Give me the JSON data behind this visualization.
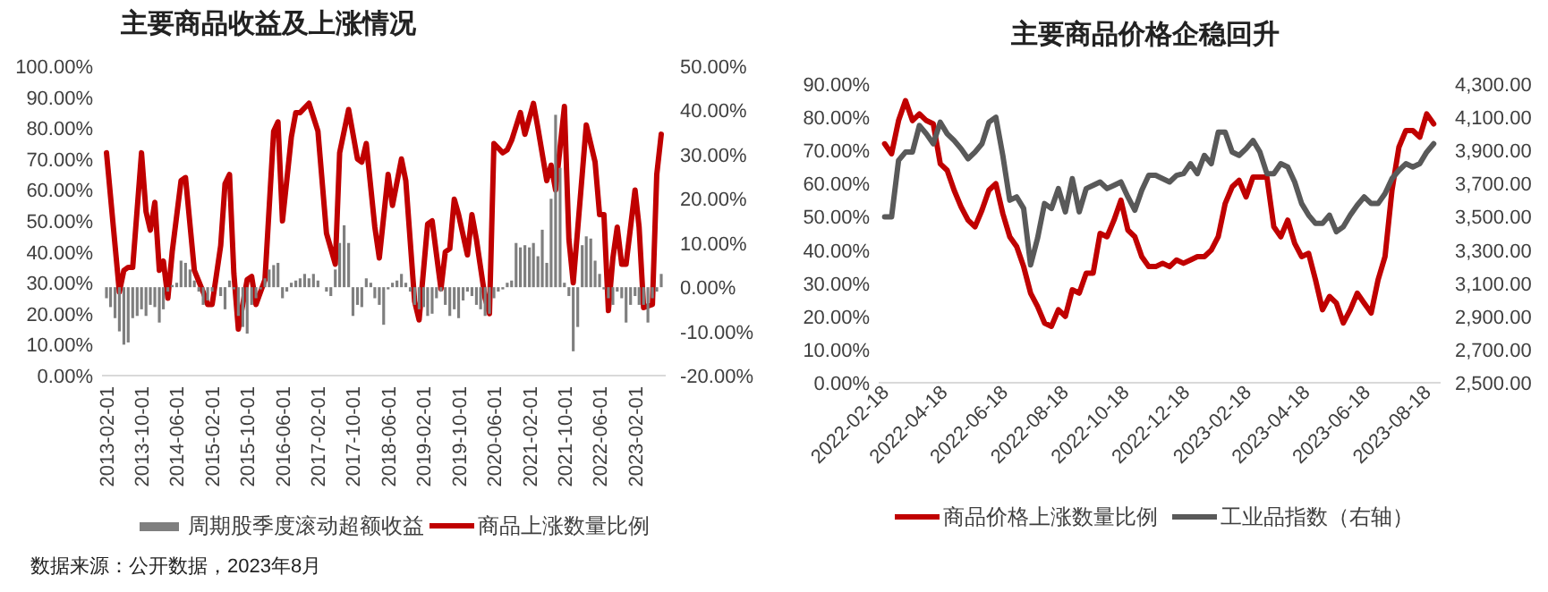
{
  "chart_data": [
    {
      "type": "bar",
      "title": "主要商品收益及上涨情况",
      "legend": "bottom",
      "annotations": [
        "数据来源：公开数据，2023年8月"
      ],
      "xlim": [
        "2013-01",
        "2023-09"
      ],
      "xticks": [
        "2013-02-01",
        "2013-10-01",
        "2014-06-01",
        "2015-02-01",
        "2015-10-01",
        "2016-06-01",
        "2017-02-01",
        "2017-10-01",
        "2018-06-01",
        "2019-02-01",
        "2019-10-01",
        "2020-06-01",
        "2021-02-01",
        "2021-10-01",
        "2022-06-01",
        "2023-02-01"
      ],
      "ylim": [
        0,
        100
      ],
      "yticks": [
        {
          "value": 0,
          "label": "0.00%"
        },
        {
          "value": 10,
          "label": "10.00%"
        },
        {
          "value": 20,
          "label": "20.00%"
        },
        {
          "value": 30,
          "label": "30.00%"
        },
        {
          "value": 40,
          "label": "40.00%"
        },
        {
          "value": 50,
          "label": "50.00%"
        },
        {
          "value": 60,
          "label": "60.00%"
        },
        {
          "value": 70,
          "label": "70.00%"
        },
        {
          "value": 80,
          "label": "80.00%"
        },
        {
          "value": 90,
          "label": "90.00%"
        },
        {
          "value": 100,
          "label": "100.00%"
        }
      ],
      "y2lim": [
        -20,
        50
      ],
      "y2ticks": [
        {
          "value": -20,
          "label": "-20.00%"
        },
        {
          "value": -10,
          "label": "-10.00%"
        },
        {
          "value": 0,
          "label": "0.00%"
        },
        {
          "value": 10,
          "label": "10.00%"
        },
        {
          "value": 20,
          "label": "20.00%"
        },
        {
          "value": 30,
          "label": "30.00%"
        },
        {
          "value": 40,
          "label": "40.00%"
        },
        {
          "value": 50,
          "label": "50.00%"
        }
      ],
      "x": [
        "2013-02",
        "2013-03",
        "2013-04",
        "2013-05",
        "2013-06",
        "2013-07",
        "2013-08",
        "2013-09",
        "2013-10",
        "2013-11",
        "2013-12",
        "2014-01",
        "2014-02",
        "2014-03",
        "2014-04",
        "2014-05",
        "2014-06",
        "2014-07",
        "2014-08",
        "2014-09",
        "2014-10",
        "2014-11",
        "2014-12",
        "2015-01",
        "2015-02",
        "2015-03",
        "2015-04",
        "2015-05",
        "2015-06",
        "2015-07",
        "2015-08",
        "2015-09",
        "2015-10",
        "2015-11",
        "2015-12",
        "2016-01",
        "2016-02",
        "2016-03",
        "2016-04",
        "2016-05",
        "2016-06",
        "2016-07",
        "2016-08",
        "2016-09",
        "2016-10",
        "2016-11",
        "2016-12",
        "2017-01",
        "2017-02",
        "2017-03",
        "2017-04",
        "2017-05",
        "2017-06",
        "2017-07",
        "2017-08",
        "2017-09",
        "2017-10",
        "2017-11",
        "2017-12",
        "2018-01",
        "2018-02",
        "2018-03",
        "2018-04",
        "2018-05",
        "2018-06",
        "2018-07",
        "2018-08",
        "2018-09",
        "2018-10",
        "2018-11",
        "2018-12",
        "2019-01",
        "2019-02",
        "2019-03",
        "2019-04",
        "2019-05",
        "2019-06",
        "2019-07",
        "2019-08",
        "2019-09",
        "2019-10",
        "2019-11",
        "2019-12",
        "2020-01",
        "2020-02",
        "2020-03",
        "2020-04",
        "2020-05",
        "2020-06",
        "2020-07",
        "2020-08",
        "2020-09",
        "2020-10",
        "2020-11",
        "2020-12",
        "2021-01",
        "2021-02",
        "2021-03",
        "2021-04",
        "2021-05",
        "2021-06",
        "2021-07",
        "2021-08",
        "2021-09",
        "2021-10",
        "2021-11",
        "2021-12",
        "2022-01",
        "2022-02",
        "2022-03",
        "2022-04",
        "2022-05",
        "2022-06",
        "2022-07",
        "2022-08",
        "2022-09",
        "2022-10",
        "2022-11",
        "2022-12",
        "2023-01",
        "2023-02",
        "2023-03",
        "2023-04",
        "2023-05",
        "2023-06",
        "2023-07",
        "2023-08"
      ],
      "series": [
        {
          "name": "周期股季度滚动超额收益",
          "axis": "y2",
          "color": "#7f7f7f",
          "values": [
            -2.5,
            -4.5,
            -7,
            -10,
            -13,
            -12.5,
            -7,
            -6.5,
            -5,
            -6.5,
            -4,
            -4.5,
            -8,
            -5,
            -1,
            0.5,
            1,
            6,
            5.5,
            4,
            1.5,
            -1,
            -4,
            -3,
            -1,
            0,
            -2,
            -5,
            1.5,
            -0.5,
            -6.5,
            -9,
            -10.5,
            -4,
            -2.5,
            -0.5,
            2,
            4,
            5,
            5.5,
            -2.5,
            -1,
            1,
            1.5,
            2,
            3,
            2,
            3,
            1.5,
            0,
            -1,
            -2,
            4,
            10,
            14,
            10,
            -6.5,
            -4,
            -4.5,
            2,
            1,
            -2.5,
            -4,
            -8.5,
            -0.5,
            1,
            1.5,
            3,
            1,
            -1,
            -4,
            -5,
            -4.5,
            -6.5,
            -6,
            -2.5,
            -1,
            -4,
            -6.5,
            -5,
            -7,
            -3,
            -1,
            -2,
            -4,
            -5,
            -6.5,
            -6,
            -2.5,
            -1,
            -0.5,
            1,
            1.5,
            10,
            9,
            9.5,
            9,
            10,
            7,
            13,
            5.5,
            20,
            39,
            27,
            1,
            -2,
            -14.5,
            -9,
            9.5,
            11.5,
            11,
            6,
            3,
            -0.5,
            -2.5,
            -4,
            -1,
            -2.5,
            -8,
            -4,
            -2,
            -4,
            -4,
            -8,
            -2.5,
            -1,
            3
          ]
        },
        {
          "name": "商品上涨数量比例",
          "type": "line",
          "axis": "y",
          "color": "#c00000",
          "x": [
            "2013-02",
            "2013-05",
            "2013-06",
            "2013-07",
            "2013-08",
            "2013-10",
            "2013-11",
            "2013-12",
            "2014-01",
            "2014-02",
            "2014-03",
            "2014-04",
            "2014-05",
            "2014-07",
            "2014-08",
            "2014-10",
            "2014-12",
            "2015-01",
            "2015-02",
            "2015-04",
            "2015-05",
            "2015-06",
            "2015-07",
            "2015-08",
            "2015-10",
            "2015-11",
            "2015-12",
            "2016-02",
            "2016-04",
            "2016-05",
            "2016-06",
            "2016-08",
            "2016-09",
            "2016-10",
            "2016-12",
            "2017-02",
            "2017-04",
            "2017-06",
            "2017-07",
            "2017-09",
            "2017-11",
            "2017-12",
            "2018-01",
            "2018-03",
            "2018-04",
            "2018-06",
            "2018-07",
            "2018-09",
            "2018-10",
            "2018-12",
            "2019-01",
            "2019-03",
            "2019-04",
            "2019-06",
            "2019-07",
            "2019-08",
            "2019-09",
            "2019-10",
            "2019-12",
            "2020-01",
            "2020-02",
            "2020-04",
            "2020-05",
            "2020-06",
            "2020-08",
            "2020-09",
            "2020-10",
            "2020-12",
            "2021-01",
            "2021-03",
            "2021-04",
            "2021-06",
            "2021-07",
            "2021-08",
            "2021-10",
            "2021-11",
            "2021-12",
            "2022-02",
            "2022-03",
            "2022-05",
            "2022-06",
            "2022-07",
            "2022-08",
            "2022-09",
            "2022-10",
            "2022-11",
            "2022-12",
            "2023-02",
            "2023-03",
            "2023-04",
            "2023-06",
            "2023-07",
            "2023-08"
          ],
          "values": [
            72,
            27,
            34,
            35,
            35,
            72,
            53,
            47,
            56,
            34,
            37,
            25,
            40,
            63,
            64,
            34,
            27,
            23,
            23,
            42,
            62,
            65,
            33,
            15,
            31,
            32,
            23,
            31,
            79,
            82,
            50,
            77,
            85,
            85,
            88,
            79,
            46,
            36,
            72,
            86,
            70,
            69,
            75,
            48,
            38,
            65,
            55,
            70,
            63,
            24,
            18,
            49,
            50,
            28,
            40,
            41,
            57,
            52,
            39,
            52,
            44,
            25,
            20,
            75,
            72,
            73,
            76,
            85,
            78,
            88,
            80,
            63,
            68,
            60,
            87,
            44,
            30,
            65,
            81,
            69,
            52,
            52,
            21,
            38,
            48,
            36,
            36,
            60,
            48,
            22,
            23,
            65,
            78
          ]
        }
      ]
    },
    {
      "type": "line",
      "title": "主要商品价格企稳回升",
      "legend": "bottom",
      "xlim": [
        "2022-02-12",
        "2023-09-01"
      ],
      "xticks": [
        "2022-02-18",
        "2022-04-18",
        "2022-06-18",
        "2022-08-18",
        "2022-10-18",
        "2022-12-18",
        "2023-02-18",
        "2023-04-18",
        "2023-06-18",
        "2023-08-18"
      ],
      "ylim": [
        0,
        90
      ],
      "yticks": [
        {
          "value": 0,
          "label": "0.00%"
        },
        {
          "value": 10,
          "label": "10.00%"
        },
        {
          "value": 20,
          "label": "20.00%"
        },
        {
          "value": 30,
          "label": "30.00%"
        },
        {
          "value": 40,
          "label": "40.00%"
        },
        {
          "value": 50,
          "label": "50.00%"
        },
        {
          "value": 60,
          "label": "60.00%"
        },
        {
          "value": 70,
          "label": "70.00%"
        },
        {
          "value": 80,
          "label": "80.00%"
        },
        {
          "value": 90,
          "label": "90.00%"
        }
      ],
      "y2lim": [
        2500,
        4300
      ],
      "y2ticks": [
        {
          "value": 2500,
          "label": "2,500.00"
        },
        {
          "value": 2700,
          "label": "2,700.00"
        },
        {
          "value": 2900,
          "label": "2,900.00"
        },
        {
          "value": 3100,
          "label": "3,100.00"
        },
        {
          "value": 3300,
          "label": "3,300.00"
        },
        {
          "value": 3500,
          "label": "3,500.00"
        },
        {
          "value": 3700,
          "label": "3,700.00"
        },
        {
          "value": 3900,
          "label": "3,900.00"
        },
        {
          "value": 4100,
          "label": "4,100.00"
        },
        {
          "value": 4300,
          "label": "4,300.00"
        }
      ],
      "x": [
        "2022-02-18",
        "2022-02-25",
        "2022-03-04",
        "2022-03-11",
        "2022-03-18",
        "2022-03-25",
        "2022-04-01",
        "2022-04-08",
        "2022-04-15",
        "2022-04-22",
        "2022-04-29",
        "2022-05-06",
        "2022-05-13",
        "2022-05-20",
        "2022-05-27",
        "2022-06-03",
        "2022-06-10",
        "2022-06-17",
        "2022-06-24",
        "2022-07-01",
        "2022-07-08",
        "2022-07-15",
        "2022-07-22",
        "2022-07-29",
        "2022-08-05",
        "2022-08-12",
        "2022-08-19",
        "2022-08-26",
        "2022-09-02",
        "2022-09-09",
        "2022-09-16",
        "2022-09-23",
        "2022-09-30",
        "2022-10-07",
        "2022-10-14",
        "2022-10-21",
        "2022-10-28",
        "2022-11-04",
        "2022-11-11",
        "2022-11-18",
        "2022-11-25",
        "2022-12-02",
        "2022-12-09",
        "2022-12-16",
        "2022-12-23",
        "2022-12-30",
        "2023-01-06",
        "2023-01-13",
        "2023-01-20",
        "2023-01-27",
        "2023-02-03",
        "2023-02-10",
        "2023-02-17",
        "2023-02-24",
        "2023-03-03",
        "2023-03-10",
        "2023-03-17",
        "2023-03-24",
        "2023-03-31",
        "2023-04-07",
        "2023-04-14",
        "2023-04-21",
        "2023-04-28",
        "2023-05-05",
        "2023-05-12",
        "2023-05-19",
        "2023-05-26",
        "2023-06-02",
        "2023-06-09",
        "2023-06-16",
        "2023-06-23",
        "2023-06-30",
        "2023-07-07",
        "2023-07-14",
        "2023-07-21",
        "2023-07-28",
        "2023-08-04",
        "2023-08-11",
        "2023-08-18",
        "2023-08-25"
      ],
      "series": [
        {
          "name": "商品价格上涨数量比例",
          "axis": "y",
          "color": "#c00000",
          "values": [
            72,
            69,
            79,
            85,
            79,
            81,
            79,
            78,
            66,
            64,
            58,
            53,
            49,
            47,
            52,
            58,
            60,
            51,
            44,
            41,
            35,
            27,
            23,
            18,
            17,
            22,
            20,
            28,
            27,
            33,
            33,
            45,
            44,
            49,
            55,
            46,
            44,
            38,
            35,
            35,
            36,
            35,
            37,
            36,
            37,
            38,
            38,
            40,
            44,
            54,
            59,
            61,
            56,
            62,
            62,
            62,
            47,
            44,
            49,
            42,
            38,
            39,
            31,
            22,
            26,
            24,
            18,
            22,
            27,
            24,
            21,
            31,
            38,
            58,
            71,
            76,
            76,
            74,
            81,
            78
          ]
        },
        {
          "name": "工业品指数（右轴）",
          "axis": "y2",
          "color": "#595959",
          "values": [
            3500,
            3500,
            3840,
            3890,
            3890,
            4050,
            4000,
            3940,
            4070,
            4000,
            3960,
            3910,
            3850,
            3890,
            3940,
            4070,
            4100,
            3870,
            3600,
            3620,
            3550,
            3210,
            3370,
            3580,
            3550,
            3670,
            3530,
            3730,
            3530,
            3670,
            3690,
            3710,
            3670,
            3690,
            3710,
            3620,
            3540,
            3660,
            3750,
            3750,
            3730,
            3710,
            3750,
            3760,
            3820,
            3760,
            3870,
            3820,
            4010,
            4010,
            3890,
            3870,
            3910,
            3960,
            3890,
            3760,
            3760,
            3820,
            3800,
            3710,
            3580,
            3510,
            3460,
            3460,
            3510,
            3410,
            3440,
            3510,
            3570,
            3620,
            3580,
            3580,
            3640,
            3730,
            3780,
            3820,
            3800,
            3820,
            3890,
            3940
          ]
        }
      ]
    }
  ]
}
